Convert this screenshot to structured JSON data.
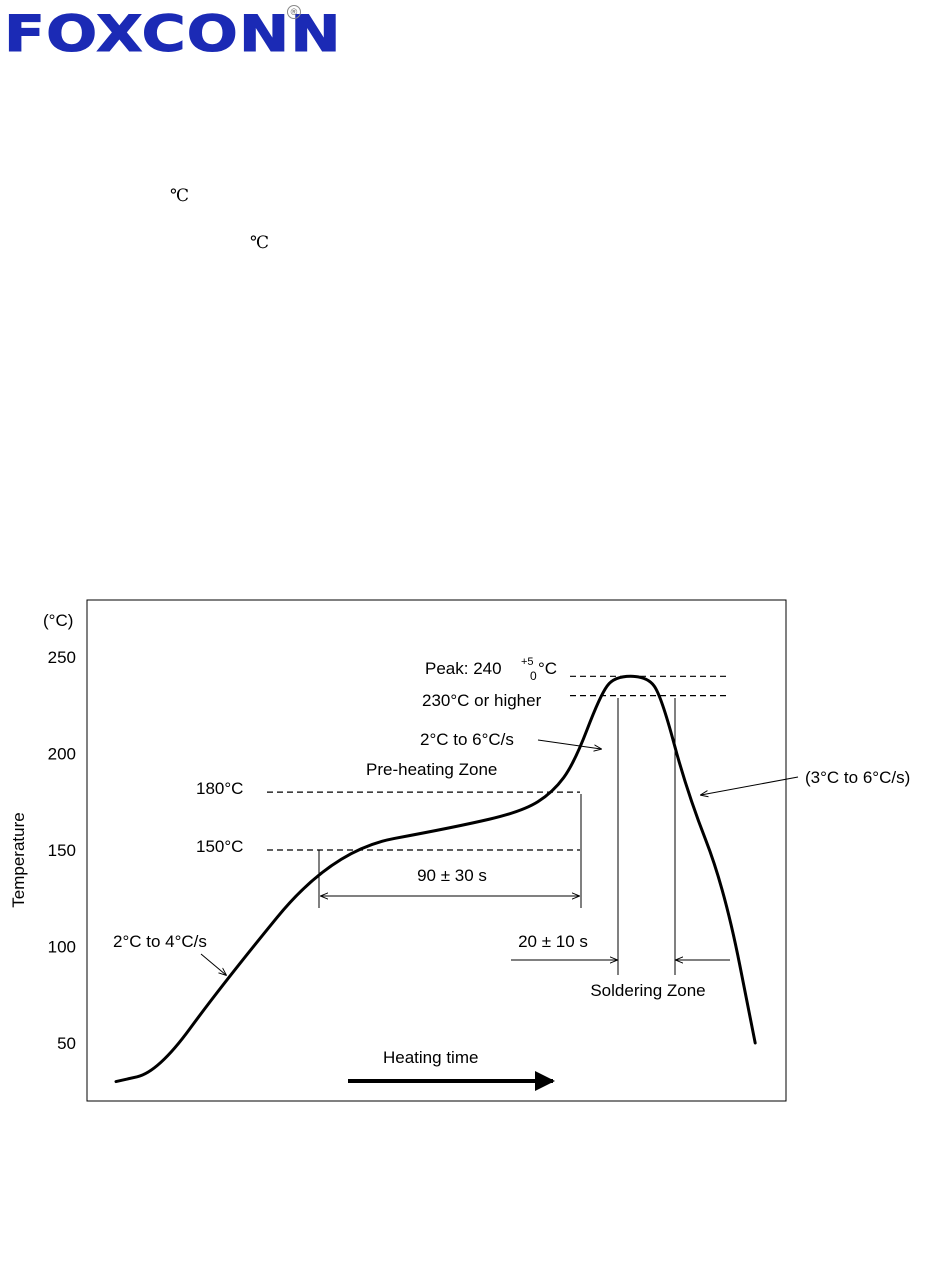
{
  "header": {
    "logo_text": "FOXCONN",
    "logo_reg_mark": "®",
    "logo_color": "#1b2ab5"
  },
  "body_fragments": {
    "degree_symbol_1": "℃",
    "degree_symbol_2": "℃"
  },
  "chart_data": {
    "type": "line",
    "title": "",
    "ylabel": "Temperature",
    "yunit": "(°C)",
    "xlabel": "Heating time",
    "yticks": [
      250,
      200,
      150,
      100,
      50
    ],
    "ylim": [
      30,
      255
    ],
    "series": [
      {
        "points": [
          [
            0,
            30
          ],
          [
            18,
            35
          ],
          [
            45,
            80
          ],
          [
            92,
            150
          ],
          [
            145,
            162
          ],
          [
            173,
            170
          ],
          [
            186,
            180
          ],
          [
            195,
            195
          ],
          [
            206,
            230
          ],
          [
            212,
            240
          ],
          [
            226,
            240
          ],
          [
            232,
            230
          ],
          [
            243,
            180
          ],
          [
            259,
            130
          ],
          [
            272,
            50
          ]
        ]
      }
    ],
    "reference_lines": [
      {
        "label": "Peak: 240",
        "value": 240
      },
      {
        "label": "230°C or higher",
        "value": 230
      },
      {
        "label": "180°C",
        "value": 180
      },
      {
        "label": "150°C",
        "value": 150
      }
    ],
    "peak_tolerance": {
      "plus": "+5",
      "minus": "0",
      "unit": "°C"
    },
    "zones": {
      "preheat": {
        "label": "Pre-heating Zone",
        "duration": "90 ± 30 s"
      },
      "soldering": {
        "label": "Soldering Zone",
        "duration": "20 ± 10 s"
      }
    },
    "rate_annotations": {
      "ramp_up": "2°C to 4°C/s",
      "ramp_to_peak": "2°C to 6°C/s",
      "cool_down": "(3°C to 6°C/s)"
    }
  }
}
